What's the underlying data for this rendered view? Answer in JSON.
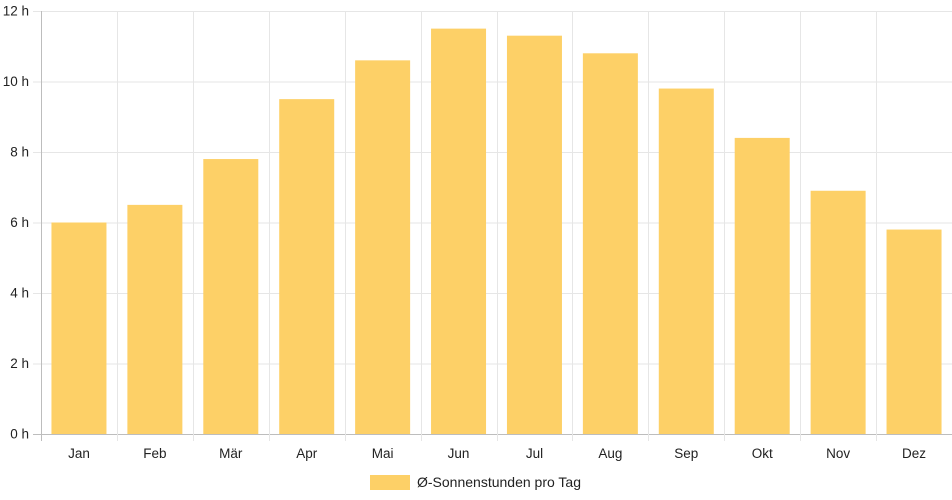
{
  "chart_data": {
    "type": "bar",
    "categories": [
      "Jan",
      "Feb",
      "Mär",
      "Apr",
      "Mai",
      "Jun",
      "Jul",
      "Aug",
      "Sep",
      "Okt",
      "Nov",
      "Dez"
    ],
    "series": [
      {
        "name": "Ø-Sonnenstunden pro Tag",
        "values": [
          6.0,
          6.5,
          7.8,
          9.5,
          10.6,
          11.5,
          11.3,
          10.8,
          9.8,
          8.4,
          6.9,
          5.8
        ],
        "color": "#fdd067"
      }
    ],
    "y_ticks": [
      "0 h",
      "2 h",
      "4 h",
      "6 h",
      "8 h",
      "10 h",
      "12 h"
    ],
    "ylim": [
      0,
      12
    ],
    "grid": true,
    "legend_position": "bottom"
  }
}
